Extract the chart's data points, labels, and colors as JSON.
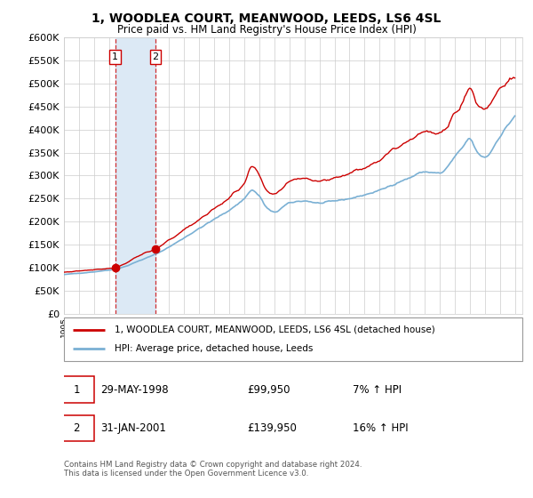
{
  "title": "1, WOODLEA COURT, MEANWOOD, LEEDS, LS6 4SL",
  "subtitle": "Price paid vs. HM Land Registry's House Price Index (HPI)",
  "legend_line1": "1, WOODLEA COURT, MEANWOOD, LEEDS, LS6 4SL (detached house)",
  "legend_line2": "HPI: Average price, detached house, Leeds",
  "transaction1_date": "29-MAY-1998",
  "transaction1_price": "£99,950",
  "transaction1_hpi": "7% ↑ HPI",
  "transaction2_date": "31-JAN-2001",
  "transaction2_price": "£139,950",
  "transaction2_hpi": "16% ↑ HPI",
  "footnote": "Contains HM Land Registry data © Crown copyright and database right 2024.\nThis data is licensed under the Open Government Licence v3.0.",
  "red_color": "#cc0000",
  "blue_color": "#7ab0d4",
  "highlight_color": "#dce9f5",
  "grid_color": "#cccccc",
  "bg_color": "#ffffff",
  "ylim": [
    0,
    600000
  ],
  "ytick_step": 50000,
  "sale1_x": 1998.41,
  "sale1_y": 99950,
  "sale2_x": 2001.08,
  "sale2_y": 139950,
  "xmin": 1995.0,
  "xmax": 2025.5
}
